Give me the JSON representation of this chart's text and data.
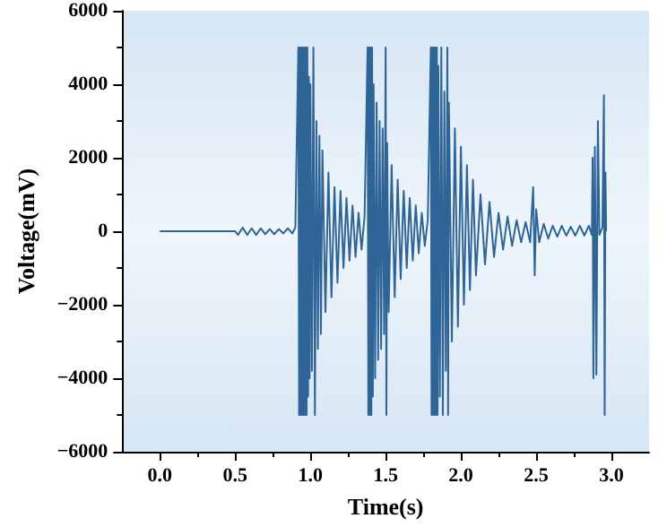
{
  "chart_data": {
    "type": "line",
    "xlabel": "Time(s)",
    "ylabel": "Voltage(mV)",
    "xlim": [
      -0.25,
      3.25
    ],
    "xticks": [
      {
        "value": 0,
        "label": "0.0"
      },
      {
        "value": 0.5,
        "label": "0.5"
      },
      {
        "value": 1,
        "label": "1.0"
      },
      {
        "value": 1.5,
        "label": "1.5"
      },
      {
        "value": 2,
        "label": "2.0"
      },
      {
        "value": 2.5,
        "label": "2.5"
      },
      {
        "value": 3,
        "label": "3.0"
      }
    ],
    "ylim": [
      -6000,
      6000
    ],
    "yticks": [
      -6000,
      -4000,
      -2000,
      0,
      2000,
      4000,
      6000
    ],
    "grid": false,
    "marker": "none",
    "line_style": "solid",
    "series": [
      {
        "color": "#2f6497",
        "x": [
          0,
          0.5,
          0.52,
          0.55,
          0.58,
          0.61,
          0.64,
          0.67,
          0.7,
          0.73,
          0.76,
          0.79,
          0.82,
          0.85,
          0.88,
          0.9,
          0.92,
          0.925,
          0.93,
          0.935,
          0.94,
          0.945,
          0.95,
          0.955,
          0.96,
          0.965,
          0.97,
          0.975,
          0.98,
          0.985,
          0.99,
          0.995,
          1.0,
          1.01,
          1.02,
          1.03,
          1.04,
          1.05,
          1.06,
          1.07,
          1.08,
          1.1,
          1.12,
          1.14,
          1.16,
          1.18,
          1.2,
          1.22,
          1.24,
          1.26,
          1.28,
          1.3,
          1.32,
          1.34,
          1.36,
          1.38,
          1.385,
          1.39,
          1.395,
          1.4,
          1.405,
          1.41,
          1.415,
          1.42,
          1.43,
          1.44,
          1.45,
          1.46,
          1.47,
          1.48,
          1.49,
          1.5,
          1.505,
          1.51,
          1.52,
          1.54,
          1.56,
          1.58,
          1.6,
          1.62,
          1.64,
          1.66,
          1.68,
          1.7,
          1.72,
          1.74,
          1.76,
          1.78,
          1.8,
          1.805,
          1.81,
          1.815,
          1.82,
          1.825,
          1.83,
          1.835,
          1.84,
          1.845,
          1.85,
          1.86,
          1.87,
          1.88,
          1.89,
          1.9,
          1.91,
          1.915,
          1.92,
          1.94,
          1.96,
          1.98,
          2.0,
          2.02,
          2.04,
          2.06,
          2.08,
          2.1,
          2.13,
          2.16,
          2.19,
          2.22,
          2.25,
          2.28,
          2.31,
          2.34,
          2.37,
          2.4,
          2.43,
          2.46,
          2.48,
          2.49,
          2.5,
          2.52,
          2.55,
          2.58,
          2.61,
          2.64,
          2.67,
          2.7,
          2.73,
          2.76,
          2.79,
          2.82,
          2.85,
          2.87,
          2.875,
          2.88,
          2.89,
          2.9,
          2.91,
          2.92,
          2.94,
          2.95,
          2.955,
          2.96,
          2.965
        ],
        "values": [
          0,
          0,
          -100,
          100,
          -100,
          80,
          -100,
          80,
          -80,
          60,
          -80,
          60,
          -60,
          80,
          -60,
          100,
          5000,
          -5000,
          5000,
          -5000,
          5000,
          -5000,
          5000,
          -5000,
          5000,
          -5000,
          5000,
          -5000,
          5000,
          -4500,
          4200,
          -4000,
          4000,
          -3800,
          5000,
          -5000,
          3000,
          -3200,
          2600,
          -2800,
          2200,
          -2200,
          1600,
          -1800,
          1200,
          -1400,
          1100,
          -1000,
          900,
          -800,
          700,
          -700,
          500,
          -500,
          400,
          5000,
          -5000,
          5000,
          -5000,
          5000,
          -5000,
          5000,
          -4500,
          4000,
          -4000,
          3500,
          -3500,
          3000,
          -3200,
          2800,
          -2800,
          5000,
          -5000,
          2400,
          -2200,
          1800,
          -1800,
          1400,
          -1300,
          1100,
          -1000,
          900,
          -800,
          700,
          -600,
          500,
          -400,
          300,
          5000,
          -5000,
          5000,
          -5000,
          5000,
          -5000,
          5000,
          -5000,
          5000,
          -5000,
          4500,
          -4500,
          5000,
          -5000,
          3800,
          -3800,
          5000,
          -5000,
          3500,
          -3000,
          2800,
          -2600,
          2300,
          -2000,
          1800,
          -1600,
          1400,
          -1200,
          1000,
          -900,
          800,
          -700,
          500,
          -500,
          400,
          -400,
          300,
          -300,
          250,
          -300,
          1200,
          -1200,
          600,
          -300,
          200,
          -200,
          150,
          -150,
          150,
          -120,
          120,
          -120,
          150,
          -120,
          150,
          -100,
          2000,
          -4000,
          2300,
          -3900,
          3000,
          -100,
          100,
          3700,
          -5000,
          1600,
          0
        ]
      }
    ]
  }
}
